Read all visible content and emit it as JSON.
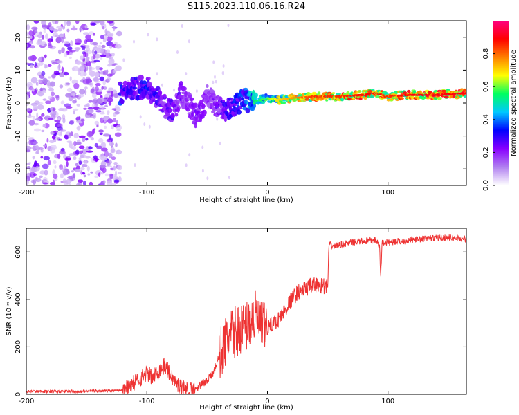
{
  "title": "S115.2023.110.06.16.R24",
  "chart_data": [
    {
      "type": "heatmap",
      "name": "spectrogram",
      "xlabel": "Height of straight line (km)",
      "ylabel": "Frequency (Hz)",
      "xlim": [
        -200,
        165
      ],
      "ylim": [
        -25,
        25
      ],
      "xticks": [
        -200,
        -100,
        0,
        100
      ],
      "yticks": [
        -20,
        -10,
        0,
        10,
        20
      ],
      "colorbar": {
        "label": "Normalized spectral amplitude",
        "range": [
          0,
          1
        ],
        "ticks": [
          0.0,
          0.2,
          0.4,
          0.6,
          0.8
        ],
        "tick_labels": [
          "0.0",
          "0.2",
          "0.4",
          "0.6",
          "0.8"
        ],
        "colors": [
          "#ffffff",
          "#b080f0",
          "#8800ff",
          "#0000ff",
          "#00c8ff",
          "#00ff60",
          "#ffff00",
          "#ff8000",
          "#ff0000",
          "#ff0080"
        ]
      },
      "noise_region_x": [
        -200,
        -122
      ],
      "ridge": {
        "x": [
          -122,
          -110,
          -100,
          -92,
          -85,
          -78,
          -72,
          -65,
          -58,
          -50,
          -42,
          -35,
          -28,
          -20,
          -10,
          0,
          10,
          20,
          40,
          60,
          80,
          90,
          100,
          120,
          140,
          165
        ],
        "freq": [
          3,
          4.5,
          5,
          2,
          -1,
          -3,
          3,
          0,
          -5,
          2,
          -1,
          -2,
          -1,
          1,
          0.5,
          1.5,
          1,
          1.5,
          2,
          2,
          2.5,
          3,
          2,
          2.5,
          2.5,
          3
        ],
        "amp": [
          0.35,
          0.3,
          0.35,
          0.3,
          0.25,
          0.28,
          0.25,
          0.2,
          0.25,
          0.2,
          0.25,
          0.3,
          0.35,
          0.4,
          0.55,
          0.6,
          0.7,
          0.75,
          0.85,
          0.85,
          0.88,
          0.9,
          0.85,
          0.9,
          0.9,
          0.9
        ]
      }
    },
    {
      "type": "line",
      "name": "snr",
      "xlabel": "Height of straight line (km)",
      "ylabel": "SNR (10 * v/v)",
      "xlim": [
        -200,
        165
      ],
      "ylim": [
        0,
        700
      ],
      "xticks": [
        -200,
        -100,
        0,
        100
      ],
      "yticks": [
        0,
        200,
        400,
        600
      ],
      "color": "#ee3333",
      "series": [
        {
          "name": "SNR",
          "x": [
            -200,
            -160,
            -130,
            -120,
            -110,
            -100,
            -95,
            -90,
            -85,
            -80,
            -75,
            -70,
            -65,
            -60,
            -55,
            -50,
            -45,
            -40,
            -35,
            -30,
            -25,
            -20,
            -15,
            -10,
            -5,
            0,
            5,
            10,
            15,
            20,
            25,
            30,
            35,
            40,
            45,
            50,
            51,
            55,
            60,
            70,
            80,
            90,
            93,
            94,
            95,
            100,
            110,
            120,
            130,
            140,
            150,
            165
          ],
          "y": [
            12,
            12,
            15,
            20,
            50,
            90,
            70,
            100,
            120,
            80,
            40,
            30,
            15,
            25,
            40,
            60,
            90,
            160,
            220,
            250,
            270,
            280,
            300,
            330,
            280,
            280,
            300,
            320,
            360,
            400,
            430,
            440,
            455,
            460,
            460,
            450,
            630,
            625,
            630,
            640,
            645,
            650,
            620,
            490,
            640,
            640,
            645,
            650,
            655,
            660,
            660,
            655
          ]
        }
      ]
    }
  ]
}
